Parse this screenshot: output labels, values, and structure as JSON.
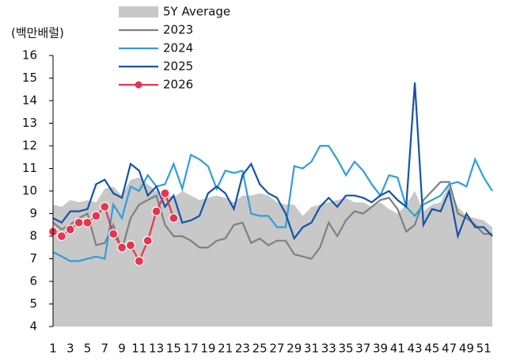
{
  "chart_data": {
    "type": "line",
    "y_label": "(백만배럴)",
    "categories": [
      1,
      null,
      3,
      null,
      5,
      null,
      7,
      null,
      9,
      null,
      11,
      null,
      13,
      null,
      15,
      null,
      17,
      null,
      19,
      null,
      21,
      null,
      23,
      null,
      25,
      null,
      27,
      null,
      29,
      null,
      31,
      null,
      33,
      null,
      35,
      null,
      37,
      null,
      39,
      null,
      41,
      null,
      43,
      null,
      45,
      null,
      47,
      null,
      49,
      null,
      51,
      null
    ],
    "ylim": [
      4,
      16
    ],
    "yticks": [
      4,
      5,
      6,
      7,
      8,
      9,
      10,
      11,
      12,
      13,
      14,
      15,
      16
    ],
    "grid": false,
    "legend": "top",
    "series": [
      {
        "name": "5Y Average",
        "style": "area",
        "color": "#c8c8c8",
        "values": [
          9.4,
          9.3,
          9.6,
          9.5,
          9.6,
          9.5,
          10.1,
          10.2,
          9.8,
          10.5,
          10.6,
          10.3,
          10.0,
          9.9,
          9.7,
          10.0,
          9.8,
          9.6,
          9.7,
          9.8,
          9.7,
          9.5,
          9.8,
          9.8,
          9.9,
          9.8,
          9.5,
          9.4,
          9.4,
          8.9,
          9.3,
          9.4,
          9.5,
          9.6,
          9.7,
          9.5,
          9.5,
          9.3,
          9.5,
          9.2,
          9.0,
          9.4,
          10.0,
          9.1,
          9.4,
          9.5,
          10.3,
          9.3,
          8.9,
          8.8,
          8.7,
          8.4
        ]
      },
      {
        "name": "2023",
        "color": "#808080",
        "values": [
          8.6,
          8.3,
          8.5,
          8.8,
          9.0,
          7.6,
          7.7,
          8.5,
          7.4,
          8.8,
          9.4,
          9.6,
          9.8,
          8.5,
          8.0,
          8.0,
          7.8,
          7.5,
          7.5,
          7.8,
          7.9,
          8.5,
          8.6,
          7.7,
          7.9,
          7.6,
          7.8,
          7.8,
          7.2,
          7.1,
          7.0,
          7.5,
          8.6,
          8.0,
          8.7,
          9.1,
          9.0,
          9.3,
          9.6,
          9.7,
          9.2,
          8.2,
          8.5,
          9.6,
          10.0,
          10.4,
          10.4,
          9.0,
          8.8,
          8.5,
          8.1,
          8.1
        ]
      },
      {
        "name": "2024",
        "color": "#2f9fd8",
        "values": [
          7.3,
          7.1,
          6.9,
          6.9,
          7.0,
          7.1,
          7.0,
          9.4,
          8.8,
          10.2,
          10.0,
          10.7,
          10.2,
          10.3,
          11.2,
          10.1,
          11.6,
          11.4,
          11.1,
          10.1,
          10.9,
          10.8,
          10.9,
          9.0,
          8.9,
          8.9,
          8.4,
          8.4,
          11.1,
          11.0,
          11.3,
          12.0,
          12.0,
          11.4,
          10.7,
          11.3,
          10.9,
          10.3,
          9.8,
          10.7,
          10.6,
          9.3,
          8.9,
          9.4,
          9.6,
          9.8,
          10.3,
          10.4,
          10.2,
          11.4,
          10.6,
          10.0
        ]
      },
      {
        "name": "2025",
        "color": "#1254a8",
        "values": [
          8.8,
          8.6,
          9.1,
          9.1,
          9.2,
          10.3,
          10.5,
          9.9,
          9.7,
          11.2,
          10.9,
          9.8,
          10.2,
          9.3,
          9.8,
          8.6,
          8.7,
          8.9,
          9.9,
          10.2,
          9.9,
          9.2,
          10.7,
          11.2,
          10.3,
          9.9,
          9.7,
          9.0,
          7.9,
          8.4,
          8.6,
          9.3,
          9.7,
          9.3,
          9.8,
          9.8,
          9.7,
          9.5,
          9.8,
          10.0,
          9.6,
          9.3,
          14.8,
          8.5,
          9.2,
          9.1,
          10.0,
          8.0,
          9.0,
          8.4,
          8.4,
          8.0
        ]
      },
      {
        "name": "2026",
        "color": "#e8354e",
        "markers": true,
        "values": [
          8.2,
          8.0,
          8.3,
          8.6,
          8.6,
          8.9,
          9.3,
          8.1,
          7.5,
          7.6,
          6.9,
          7.8,
          9.1,
          9.9,
          8.8,
          null,
          null,
          null,
          null,
          null,
          null,
          null,
          null,
          null,
          null,
          null,
          null,
          null,
          null,
          null,
          null,
          null,
          null,
          null,
          null,
          null,
          null,
          null,
          null,
          null,
          null,
          null,
          null,
          null,
          null,
          null,
          null,
          null,
          null,
          null,
          null,
          null
        ]
      }
    ]
  }
}
